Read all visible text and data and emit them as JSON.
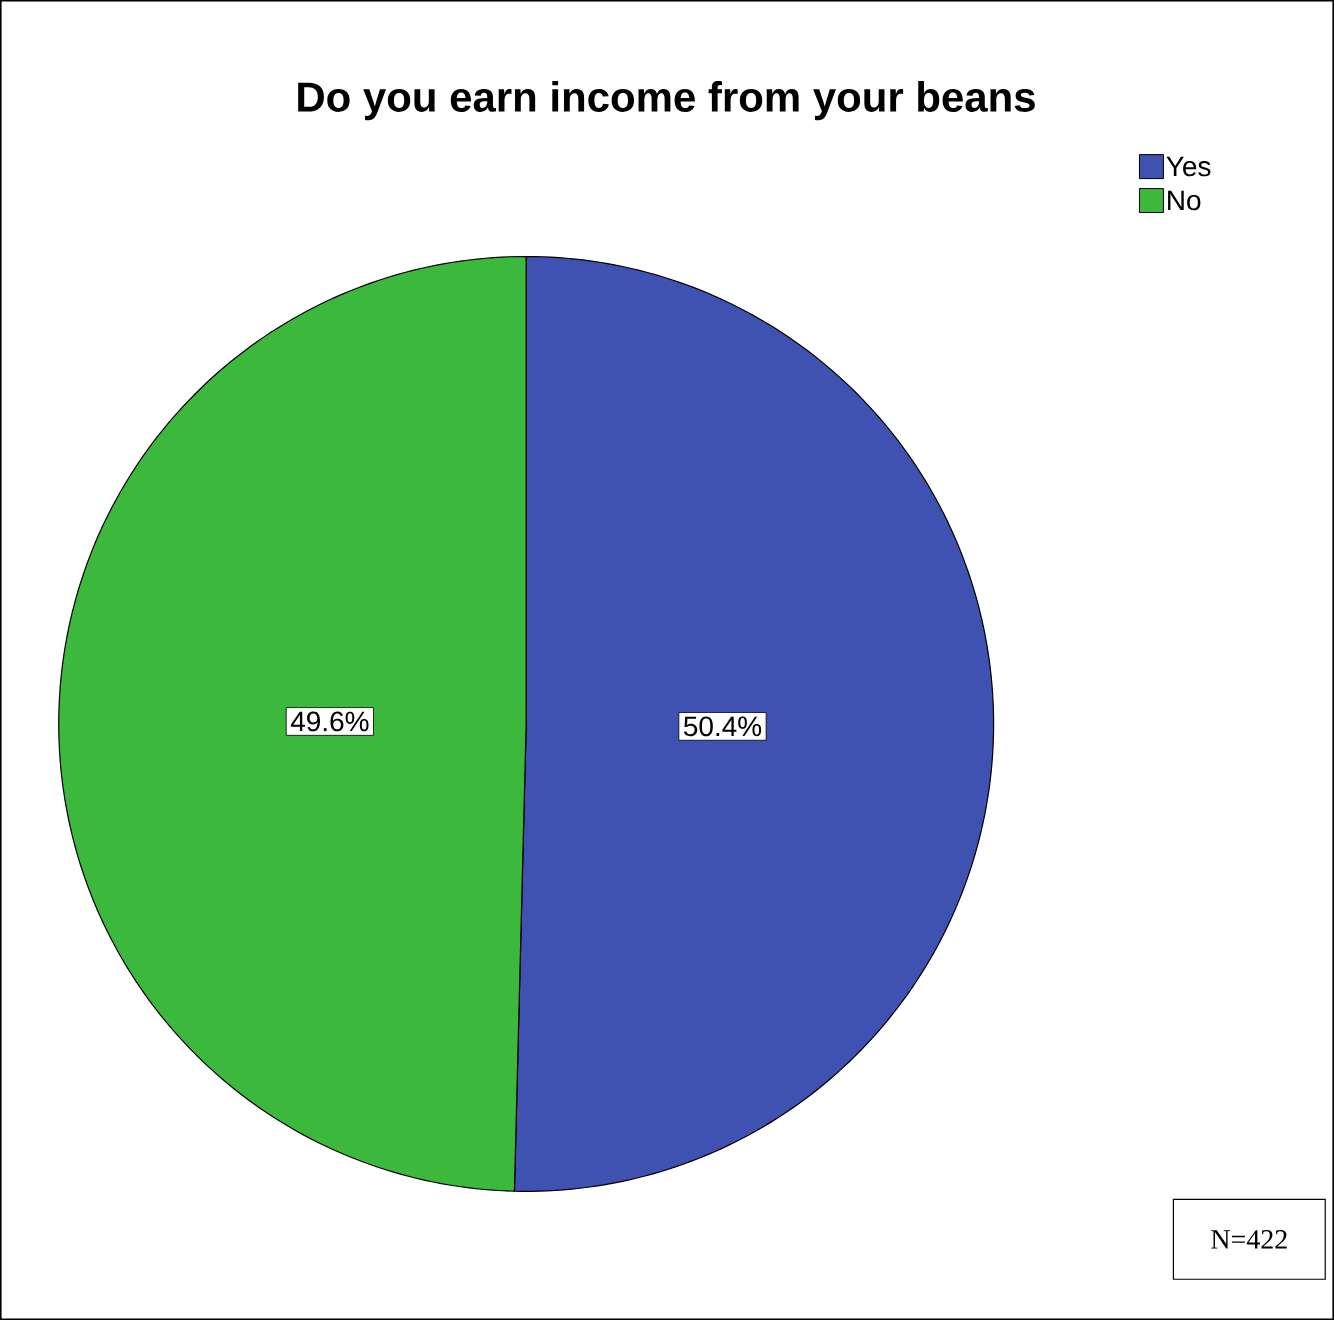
{
  "chart_data": {
    "type": "pie",
    "title": "Do you earn income from your beans",
    "categories": [
      "Yes",
      "No"
    ],
    "values": [
      50.4,
      49.6
    ],
    "colors": [
      "#3f51b1",
      "#3cb83c"
    ],
    "value_labels": [
      "50.4%",
      "49.6%"
    ],
    "legend": "top right",
    "annotations": [
      "N=422"
    ]
  }
}
